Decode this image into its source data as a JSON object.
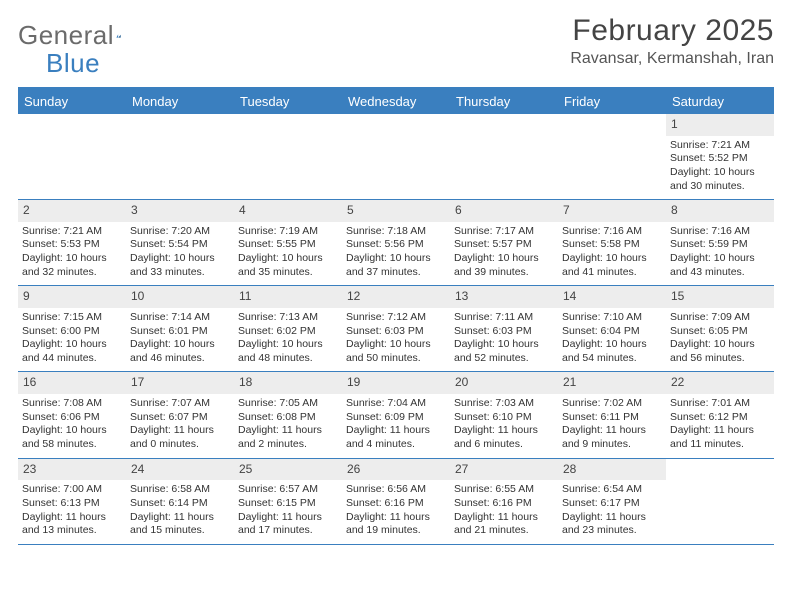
{
  "logo": {
    "word1": "General",
    "word2": "Blue"
  },
  "title": "February 2025",
  "location": "Ravansar, Kermanshah, Iran",
  "colors": {
    "brand_blue": "#3a7fbf",
    "text_gray": "#333333",
    "logo_gray": "#6b6b6b",
    "daynum_bg": "#ededed",
    "background": "#ffffff"
  },
  "dow": [
    "Sunday",
    "Monday",
    "Tuesday",
    "Wednesday",
    "Thursday",
    "Friday",
    "Saturday"
  ],
  "weeks": [
    [
      {
        "n": "",
        "sr": "",
        "ss": "",
        "dl": ""
      },
      {
        "n": "",
        "sr": "",
        "ss": "",
        "dl": ""
      },
      {
        "n": "",
        "sr": "",
        "ss": "",
        "dl": ""
      },
      {
        "n": "",
        "sr": "",
        "ss": "",
        "dl": ""
      },
      {
        "n": "",
        "sr": "",
        "ss": "",
        "dl": ""
      },
      {
        "n": "",
        "sr": "",
        "ss": "",
        "dl": ""
      },
      {
        "n": "1",
        "sr": "Sunrise: 7:21 AM",
        "ss": "Sunset: 5:52 PM",
        "dl": "Daylight: 10 hours and 30 minutes."
      }
    ],
    [
      {
        "n": "2",
        "sr": "Sunrise: 7:21 AM",
        "ss": "Sunset: 5:53 PM",
        "dl": "Daylight: 10 hours and 32 minutes."
      },
      {
        "n": "3",
        "sr": "Sunrise: 7:20 AM",
        "ss": "Sunset: 5:54 PM",
        "dl": "Daylight: 10 hours and 33 minutes."
      },
      {
        "n": "4",
        "sr": "Sunrise: 7:19 AM",
        "ss": "Sunset: 5:55 PM",
        "dl": "Daylight: 10 hours and 35 minutes."
      },
      {
        "n": "5",
        "sr": "Sunrise: 7:18 AM",
        "ss": "Sunset: 5:56 PM",
        "dl": "Daylight: 10 hours and 37 minutes."
      },
      {
        "n": "6",
        "sr": "Sunrise: 7:17 AM",
        "ss": "Sunset: 5:57 PM",
        "dl": "Daylight: 10 hours and 39 minutes."
      },
      {
        "n": "7",
        "sr": "Sunrise: 7:16 AM",
        "ss": "Sunset: 5:58 PM",
        "dl": "Daylight: 10 hours and 41 minutes."
      },
      {
        "n": "8",
        "sr": "Sunrise: 7:16 AM",
        "ss": "Sunset: 5:59 PM",
        "dl": "Daylight: 10 hours and 43 minutes."
      }
    ],
    [
      {
        "n": "9",
        "sr": "Sunrise: 7:15 AM",
        "ss": "Sunset: 6:00 PM",
        "dl": "Daylight: 10 hours and 44 minutes."
      },
      {
        "n": "10",
        "sr": "Sunrise: 7:14 AM",
        "ss": "Sunset: 6:01 PM",
        "dl": "Daylight: 10 hours and 46 minutes."
      },
      {
        "n": "11",
        "sr": "Sunrise: 7:13 AM",
        "ss": "Sunset: 6:02 PM",
        "dl": "Daylight: 10 hours and 48 minutes."
      },
      {
        "n": "12",
        "sr": "Sunrise: 7:12 AM",
        "ss": "Sunset: 6:03 PM",
        "dl": "Daylight: 10 hours and 50 minutes."
      },
      {
        "n": "13",
        "sr": "Sunrise: 7:11 AM",
        "ss": "Sunset: 6:03 PM",
        "dl": "Daylight: 10 hours and 52 minutes."
      },
      {
        "n": "14",
        "sr": "Sunrise: 7:10 AM",
        "ss": "Sunset: 6:04 PM",
        "dl": "Daylight: 10 hours and 54 minutes."
      },
      {
        "n": "15",
        "sr": "Sunrise: 7:09 AM",
        "ss": "Sunset: 6:05 PM",
        "dl": "Daylight: 10 hours and 56 minutes."
      }
    ],
    [
      {
        "n": "16",
        "sr": "Sunrise: 7:08 AM",
        "ss": "Sunset: 6:06 PM",
        "dl": "Daylight: 10 hours and 58 minutes."
      },
      {
        "n": "17",
        "sr": "Sunrise: 7:07 AM",
        "ss": "Sunset: 6:07 PM",
        "dl": "Daylight: 11 hours and 0 minutes."
      },
      {
        "n": "18",
        "sr": "Sunrise: 7:05 AM",
        "ss": "Sunset: 6:08 PM",
        "dl": "Daylight: 11 hours and 2 minutes."
      },
      {
        "n": "19",
        "sr": "Sunrise: 7:04 AM",
        "ss": "Sunset: 6:09 PM",
        "dl": "Daylight: 11 hours and 4 minutes."
      },
      {
        "n": "20",
        "sr": "Sunrise: 7:03 AM",
        "ss": "Sunset: 6:10 PM",
        "dl": "Daylight: 11 hours and 6 minutes."
      },
      {
        "n": "21",
        "sr": "Sunrise: 7:02 AM",
        "ss": "Sunset: 6:11 PM",
        "dl": "Daylight: 11 hours and 9 minutes."
      },
      {
        "n": "22",
        "sr": "Sunrise: 7:01 AM",
        "ss": "Sunset: 6:12 PM",
        "dl": "Daylight: 11 hours and 11 minutes."
      }
    ],
    [
      {
        "n": "23",
        "sr": "Sunrise: 7:00 AM",
        "ss": "Sunset: 6:13 PM",
        "dl": "Daylight: 11 hours and 13 minutes."
      },
      {
        "n": "24",
        "sr": "Sunrise: 6:58 AM",
        "ss": "Sunset: 6:14 PM",
        "dl": "Daylight: 11 hours and 15 minutes."
      },
      {
        "n": "25",
        "sr": "Sunrise: 6:57 AM",
        "ss": "Sunset: 6:15 PM",
        "dl": "Daylight: 11 hours and 17 minutes."
      },
      {
        "n": "26",
        "sr": "Sunrise: 6:56 AM",
        "ss": "Sunset: 6:16 PM",
        "dl": "Daylight: 11 hours and 19 minutes."
      },
      {
        "n": "27",
        "sr": "Sunrise: 6:55 AM",
        "ss": "Sunset: 6:16 PM",
        "dl": "Daylight: 11 hours and 21 minutes."
      },
      {
        "n": "28",
        "sr": "Sunrise: 6:54 AM",
        "ss": "Sunset: 6:17 PM",
        "dl": "Daylight: 11 hours and 23 minutes."
      },
      {
        "n": "",
        "sr": "",
        "ss": "",
        "dl": ""
      }
    ]
  ]
}
